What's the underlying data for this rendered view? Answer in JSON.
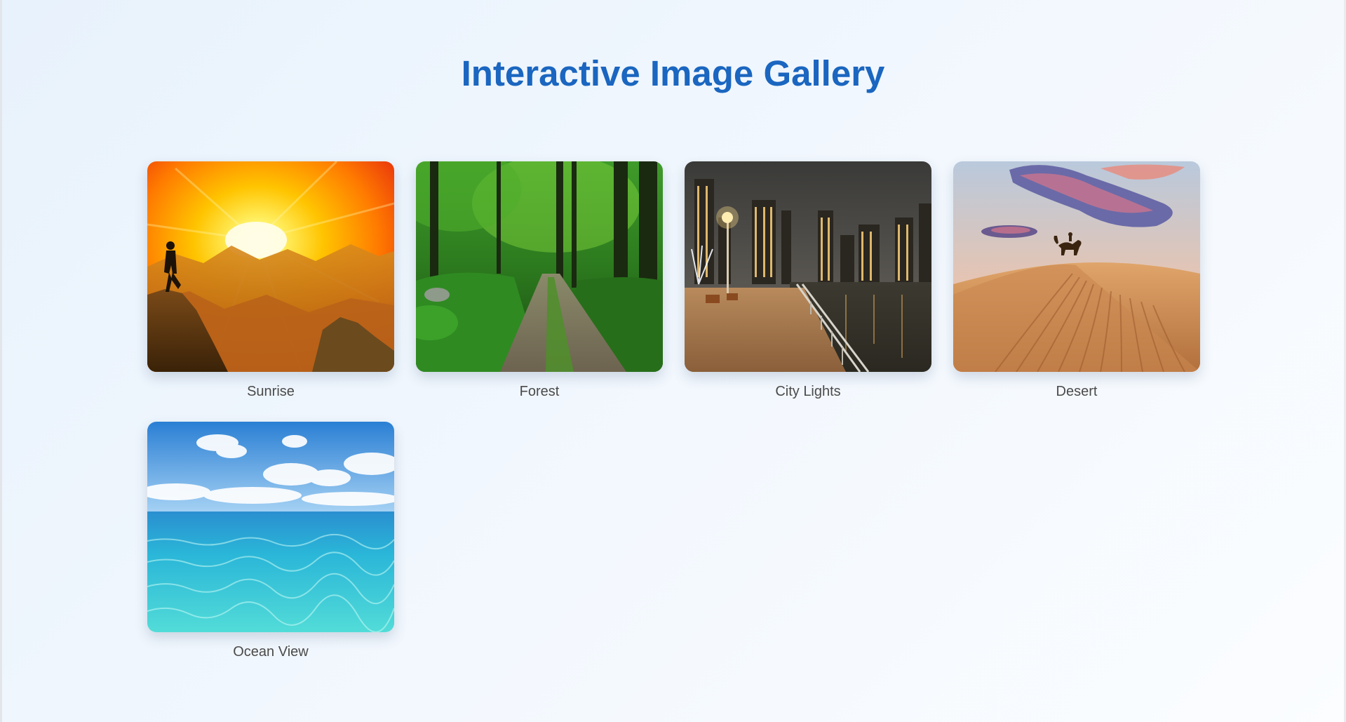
{
  "page": {
    "title": "Interactive Image Gallery"
  },
  "colors": {
    "title": "#1a66c0",
    "caption": "#4a4a4a",
    "background_start": "#e8f2fc",
    "background_end": "#fbfdff"
  },
  "gallery": {
    "items": [
      {
        "caption": "Sunrise",
        "image": "sunrise-mountain-hiker"
      },
      {
        "caption": "Forest",
        "image": "forest-dirt-path"
      },
      {
        "caption": "City Lights",
        "image": "city-waterfront-night"
      },
      {
        "caption": "Desert",
        "image": "desert-dunes-camel"
      },
      {
        "caption": "Ocean View",
        "image": "ocean-turquoise-sky"
      }
    ]
  }
}
